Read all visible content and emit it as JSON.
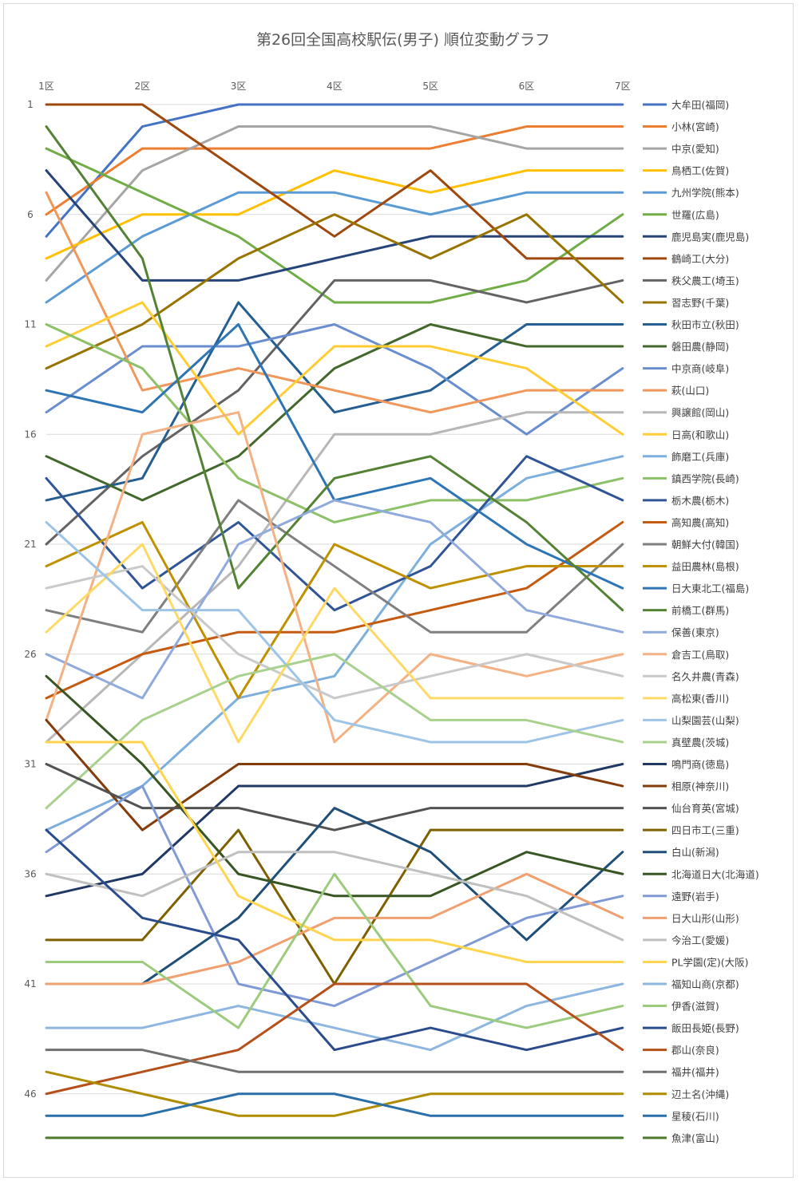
{
  "chart_data": {
    "type": "line",
    "title": "第26回全国高校駅伝(男子) 順位変動グラフ",
    "xlabel": "",
    "ylabel": "",
    "categories": [
      "1区",
      "2区",
      "3区",
      "4区",
      "5区",
      "6区",
      "7区"
    ],
    "y_tick_labels": [
      "1",
      "6",
      "11",
      "16",
      "21",
      "26",
      "31",
      "36",
      "41",
      "46"
    ],
    "y_ticks": [
      1,
      6,
      11,
      16,
      21,
      26,
      31,
      36,
      41,
      46
    ],
    "ylim": [
      1,
      48
    ],
    "y_inverted": true,
    "grid": true,
    "legend_position": "right",
    "series": [
      {
        "name": "大牟田(福岡)",
        "color": "#4472C4",
        "values": [
          7,
          2,
          1,
          1,
          1,
          1,
          1
        ]
      },
      {
        "name": "小林(宮崎)",
        "color": "#ED7D31",
        "values": [
          6,
          3,
          3,
          3,
          3,
          2,
          2
        ]
      },
      {
        "name": "中京(愛知)",
        "color": "#A5A5A5",
        "values": [
          9,
          4,
          2,
          2,
          2,
          3,
          3
        ]
      },
      {
        "name": "鳥栖工(佐賀)",
        "color": "#FFC000",
        "values": [
          8,
          6,
          6,
          4,
          5,
          4,
          4
        ]
      },
      {
        "name": "九州学院(熊本)",
        "color": "#5B9BD5",
        "values": [
          10,
          7,
          5,
          5,
          6,
          5,
          5
        ]
      },
      {
        "name": "世羅(広島)",
        "color": "#70AD47",
        "values": [
          3,
          5,
          7,
          10,
          10,
          9,
          6
        ]
      },
      {
        "name": "鹿児島実(鹿児島)",
        "color": "#264478",
        "values": [
          4,
          9,
          9,
          8,
          7,
          7,
          7
        ]
      },
      {
        "name": "鶴崎工(大分)",
        "color": "#9E480E",
        "values": [
          1,
          1,
          4,
          7,
          4,
          8,
          8
        ]
      },
      {
        "name": "秩父農工(埼玉)",
        "color": "#636363",
        "values": [
          21,
          17,
          14,
          9,
          9,
          10,
          9
        ]
      },
      {
        "name": "習志野(千葉)",
        "color": "#997300",
        "values": [
          13,
          11,
          8,
          6,
          8,
          6,
          10
        ]
      },
      {
        "name": "秋田市立(秋田)",
        "color": "#255E91",
        "values": [
          19,
          18,
          10,
          15,
          14,
          11,
          11
        ]
      },
      {
        "name": "磐田農(静岡)",
        "color": "#43682B",
        "values": [
          17,
          19,
          17,
          13,
          11,
          12,
          12
        ]
      },
      {
        "name": "中京商(岐阜)",
        "color": "#698ED0",
        "values": [
          15,
          12,
          12,
          11,
          13,
          16,
          13
        ]
      },
      {
        "name": "萩(山口)",
        "color": "#F1975A",
        "values": [
          5,
          14,
          13,
          14,
          15,
          14,
          14
        ]
      },
      {
        "name": "興譲館(岡山)",
        "color": "#B7B7B7",
        "values": [
          30,
          26,
          22,
          16,
          16,
          15,
          15
        ]
      },
      {
        "name": "日高(和歌山)",
        "color": "#FFCD33",
        "values": [
          12,
          10,
          16,
          12,
          12,
          13,
          16
        ]
      },
      {
        "name": "飾磨工(兵庫)",
        "color": "#7CAFDD",
        "values": [
          34,
          32,
          28,
          27,
          21,
          18,
          17
        ]
      },
      {
        "name": "鎮西学院(長崎)",
        "color": "#8CC168",
        "values": [
          11,
          13,
          18,
          20,
          19,
          19,
          18
        ]
      },
      {
        "name": "栃木農(栃木)",
        "color": "#2F5597",
        "values": [
          18,
          23,
          20,
          24,
          22,
          17,
          19
        ]
      },
      {
        "name": "高知農(高知)",
        "color": "#C55A11",
        "values": [
          28,
          26,
          25,
          25,
          24,
          23,
          20
        ]
      },
      {
        "name": "朝鮮大付(韓国)",
        "color": "#7F7F7F",
        "values": [
          24,
          25,
          19,
          22,
          25,
          25,
          21
        ]
      },
      {
        "name": "益田農林(島根)",
        "color": "#BF9000",
        "values": [
          22,
          20,
          28,
          21,
          23,
          22,
          22
        ]
      },
      {
        "name": "日大東北工(福島)",
        "color": "#2E75B6",
        "values": [
          14,
          15,
          11,
          19,
          18,
          21,
          23
        ]
      },
      {
        "name": "前橋工(群馬)",
        "color": "#548235",
        "values": [
          2,
          8,
          23,
          18,
          17,
          20,
          24
        ]
      },
      {
        "name": "保善(東京)",
        "color": "#8FAADC",
        "values": [
          26,
          28,
          21,
          19,
          20,
          24,
          25
        ]
      },
      {
        "name": "倉吉工(鳥取)",
        "color": "#F4B183",
        "values": [
          29,
          16,
          15,
          30,
          26,
          27,
          26
        ]
      },
      {
        "name": "名久井農(青森)",
        "color": "#C9C9C9",
        "values": [
          23,
          22,
          26,
          28,
          27,
          26,
          27
        ]
      },
      {
        "name": "高松東(香川)",
        "color": "#FFD966",
        "values": [
          25,
          21,
          30,
          23,
          28,
          28,
          28
        ]
      },
      {
        "name": "山梨園芸(山梨)",
        "color": "#9DC3E6",
        "values": [
          20,
          24,
          24,
          29,
          30,
          30,
          29
        ]
      },
      {
        "name": "真壁農(茨城)",
        "color": "#A9D18E",
        "values": [
          33,
          29,
          27,
          26,
          29,
          29,
          30
        ]
      },
      {
        "name": "鳴門商(徳島)",
        "color": "#1F3864",
        "values": [
          37,
          36,
          32,
          32,
          32,
          32,
          31
        ]
      },
      {
        "name": "相原(神奈川)",
        "color": "#843C0C",
        "values": [
          29,
          34,
          31,
          31,
          31,
          31,
          32
        ]
      },
      {
        "name": "仙台育英(宮城)",
        "color": "#525252",
        "values": [
          31,
          33,
          33,
          34,
          33,
          33,
          33
        ]
      },
      {
        "name": "四日市工(三重)",
        "color": "#7F6000",
        "values": [
          39,
          39,
          34,
          41,
          34,
          34,
          34
        ]
      },
      {
        "name": "白山(新潟)",
        "color": "#1F4E79",
        "values": [
          41,
          41,
          38,
          33,
          35,
          39,
          35
        ]
      },
      {
        "name": "北海道日大(北海道)",
        "color": "#375623",
        "values": [
          27,
          31,
          36,
          37,
          37,
          35,
          36
        ]
      },
      {
        "name": "遠野(岩手)",
        "color": "#7F9AD4",
        "values": [
          35,
          32,
          41,
          42,
          40,
          38,
          37
        ]
      },
      {
        "name": "日大山形(山形)",
        "color": "#F0A070",
        "values": [
          41,
          41,
          40,
          38,
          38,
          36,
          38
        ]
      },
      {
        "name": "今治工(愛媛)",
        "color": "#C0C0C0",
        "values": [
          36,
          37,
          35,
          35,
          36,
          37,
          39
        ]
      },
      {
        "name": "PL学園(定)(大阪)",
        "color": "#FFD54F",
        "values": [
          30,
          30,
          37,
          39,
          39,
          40,
          40
        ]
      },
      {
        "name": "福知山商(京都)",
        "color": "#8DB6E0",
        "values": [
          43,
          43,
          42,
          43,
          44,
          42,
          41
        ]
      },
      {
        "name": "伊香(滋賀)",
        "color": "#9CCB7D",
        "values": [
          40,
          40,
          43,
          36,
          42,
          43,
          42
        ]
      },
      {
        "name": "飯田長姫(長野)",
        "color": "#2B4C8C",
        "values": [
          34,
          38,
          39,
          44,
          43,
          44,
          43
        ]
      },
      {
        "name": "郡山(奈良)",
        "color": "#B5501A",
        "values": [
          46,
          45,
          44,
          41,
          41,
          41,
          44
        ]
      },
      {
        "name": "福井(福井)",
        "color": "#707070",
        "values": [
          44,
          44,
          45,
          45,
          45,
          45,
          45
        ]
      },
      {
        "name": "辺土名(沖縄)",
        "color": "#B08D00",
        "values": [
          45,
          46,
          47,
          47,
          46,
          46,
          46
        ]
      },
      {
        "name": "星稜(石川)",
        "color": "#2A6FA8",
        "values": [
          47,
          47,
          46,
          46,
          47,
          47,
          47
        ]
      },
      {
        "name": "魚津(富山)",
        "color": "#4E7A2E",
        "values": [
          48,
          48,
          48,
          48,
          48,
          48,
          48
        ]
      }
    ]
  }
}
